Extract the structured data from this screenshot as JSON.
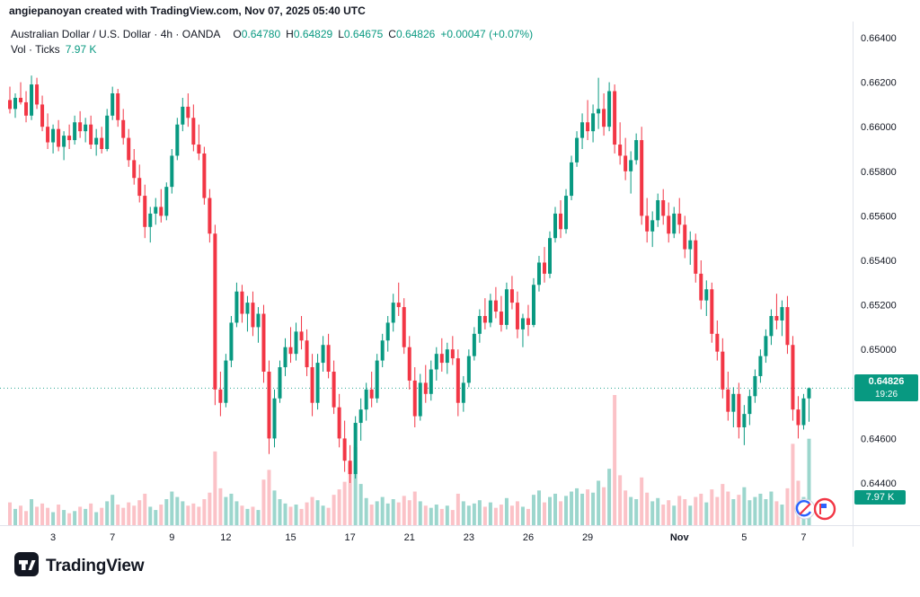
{
  "header": {
    "attribution": "angiepanoyan created with TradingView.com, Nov 07, 2025 05:40 UTC",
    "symbol_title": "Australian Dollar / U.S. Dollar · 4h · OANDA",
    "ohlc": {
      "o_label": "O",
      "o": "0.64780",
      "h_label": "H",
      "h": "0.64829",
      "l_label": "L",
      "l": "0.64675",
      "c_label": "C",
      "c": "0.64826",
      "change": "+0.00047 (+0.07%)"
    },
    "volume_label": "Vol · Ticks",
    "volume_value": "7.97 K"
  },
  "price_scale": {
    "current_price": "0.64826",
    "countdown": "19:26",
    "volume_badge": "7.97 K"
  },
  "footer": {
    "brand": "TradingView"
  },
  "colors": {
    "up": "#089981",
    "down": "#f23645",
    "up_vol": "rgba(8,153,129,0.40)",
    "down_vol": "rgba(242,54,69,0.30)",
    "axis_text": "#131722",
    "grid_line": "#e0e3eb",
    "badge_bg": "#089981"
  },
  "chart_data": {
    "type": "candlestick+volume",
    "symbol": "AUD/USD",
    "timeframe": "4h",
    "source": "OANDA",
    "title": "Australian Dollar / U.S. Dollar · 4h · OANDA",
    "ylim": [
      0.6425,
      0.6648
    ],
    "legend_position": "top-left",
    "grid": false,
    "price_ticks": [
      {
        "label": "0.66400",
        "price": 0.664
      },
      {
        "label": "0.66200",
        "price": 0.662
      },
      {
        "label": "0.66000",
        "price": 0.66
      },
      {
        "label": "0.65800",
        "price": 0.658
      },
      {
        "label": "0.65600",
        "price": 0.656
      },
      {
        "label": "0.65400",
        "price": 0.654
      },
      {
        "label": "0.65200",
        "price": 0.652
      },
      {
        "label": "0.65000",
        "price": 0.65
      },
      {
        "label": "0.64600",
        "price": 0.646
      },
      {
        "label": "0.64400",
        "price": 0.644
      }
    ],
    "x_ticks": [
      {
        "i": 8,
        "label": "3"
      },
      {
        "i": 19,
        "label": "7"
      },
      {
        "i": 30,
        "label": "9"
      },
      {
        "i": 40,
        "label": "12"
      },
      {
        "i": 52,
        "label": "15"
      },
      {
        "i": 63,
        "label": "17"
      },
      {
        "i": 74,
        "label": "21"
      },
      {
        "i": 85,
        "label": "23"
      },
      {
        "i": 96,
        "label": "26"
      },
      {
        "i": 107,
        "label": "29"
      },
      {
        "i": 124,
        "label": "Nov"
      },
      {
        "i": 136,
        "label": "5"
      },
      {
        "i": 147,
        "label": "7"
      }
    ],
    "last": {
      "close": 0.64826,
      "countdown": "19:26",
      "open": 0.6478,
      "high": 0.64829,
      "low": 0.64675
    },
    "candles": [
      [
        0.6612,
        0.6618,
        0.6606,
        0.6608
      ],
      [
        0.6608,
        0.6615,
        0.6604,
        0.6613
      ],
      [
        0.6613,
        0.662,
        0.661,
        0.6611
      ],
      [
        0.6611,
        0.6616,
        0.6602,
        0.6605
      ],
      [
        0.6605,
        0.6623,
        0.6603,
        0.6619
      ],
      [
        0.6619,
        0.6622,
        0.6608,
        0.661
      ],
      [
        0.661,
        0.6614,
        0.6598,
        0.66
      ],
      [
        0.66,
        0.6606,
        0.659,
        0.6593
      ],
      [
        0.6593,
        0.6601,
        0.6588,
        0.6599
      ],
      [
        0.6599,
        0.6603,
        0.6589,
        0.6591
      ],
      [
        0.6591,
        0.6598,
        0.6585,
        0.6596
      ],
      [
        0.6596,
        0.6601,
        0.659,
        0.6594
      ],
      [
        0.6594,
        0.6605,
        0.6592,
        0.6602
      ],
      [
        0.6602,
        0.6607,
        0.6595,
        0.6598
      ],
      [
        0.6598,
        0.6604,
        0.6593,
        0.6601
      ],
      [
        0.6601,
        0.6605,
        0.659,
        0.6592
      ],
      [
        0.6592,
        0.6599,
        0.6587,
        0.6595
      ],
      [
        0.6595,
        0.66,
        0.6588,
        0.659
      ],
      [
        0.659,
        0.6608,
        0.6589,
        0.6605
      ],
      [
        0.6605,
        0.6618,
        0.6603,
        0.6615
      ],
      [
        0.6615,
        0.6617,
        0.66,
        0.6603
      ],
      [
        0.6603,
        0.6608,
        0.6592,
        0.6595
      ],
      [
        0.6595,
        0.6599,
        0.6582,
        0.6585
      ],
      [
        0.6585,
        0.659,
        0.6574,
        0.6577
      ],
      [
        0.6577,
        0.6583,
        0.6566,
        0.6569
      ],
      [
        0.6569,
        0.6574,
        0.655,
        0.6555
      ],
      [
        0.6555,
        0.6564,
        0.6548,
        0.6561
      ],
      [
        0.6561,
        0.6568,
        0.6556,
        0.6564
      ],
      [
        0.6564,
        0.6572,
        0.6557,
        0.656
      ],
      [
        0.656,
        0.6575,
        0.6558,
        0.6573
      ],
      [
        0.6573,
        0.659,
        0.657,
        0.6587
      ],
      [
        0.6587,
        0.6604,
        0.6585,
        0.6601
      ],
      [
        0.6601,
        0.6613,
        0.6598,
        0.6609
      ],
      [
        0.6609,
        0.6615,
        0.66,
        0.6604
      ],
      [
        0.6604,
        0.661,
        0.6589,
        0.6592
      ],
      [
        0.6592,
        0.6601,
        0.6585,
        0.6588
      ],
      [
        0.6588,
        0.6591,
        0.6565,
        0.6568
      ],
      [
        0.6568,
        0.6572,
        0.6548,
        0.6552
      ],
      [
        0.6552,
        0.6556,
        0.6475,
        0.6482
      ],
      [
        0.6482,
        0.649,
        0.647,
        0.6476
      ],
      [
        0.6476,
        0.6498,
        0.6474,
        0.6495
      ],
      [
        0.6495,
        0.6515,
        0.6492,
        0.6512
      ],
      [
        0.6512,
        0.653,
        0.651,
        0.6526
      ],
      [
        0.6526,
        0.6529,
        0.6512,
        0.6516
      ],
      [
        0.6516,
        0.6524,
        0.6508,
        0.6521
      ],
      [
        0.6521,
        0.6526,
        0.6506,
        0.651
      ],
      [
        0.651,
        0.6519,
        0.6503,
        0.6516
      ],
      [
        0.6516,
        0.652,
        0.6485,
        0.649
      ],
      [
        0.649,
        0.6495,
        0.6453,
        0.646
      ],
      [
        0.646,
        0.6482,
        0.6456,
        0.6478
      ],
      [
        0.6478,
        0.6495,
        0.6476,
        0.6492
      ],
      [
        0.6492,
        0.6505,
        0.6488,
        0.6501
      ],
      [
        0.6501,
        0.651,
        0.6494,
        0.6498
      ],
      [
        0.6498,
        0.6512,
        0.6495,
        0.6508
      ],
      [
        0.6508,
        0.6515,
        0.65,
        0.6504
      ],
      [
        0.6504,
        0.6509,
        0.6488,
        0.6492
      ],
      [
        0.6492,
        0.6498,
        0.647,
        0.6476
      ],
      [
        0.6476,
        0.6498,
        0.6473,
        0.6494
      ],
      [
        0.6494,
        0.6506,
        0.649,
        0.6502
      ],
      [
        0.6502,
        0.6507,
        0.6487,
        0.649
      ],
      [
        0.649,
        0.6495,
        0.6471,
        0.6474
      ],
      [
        0.6474,
        0.648,
        0.6456,
        0.646
      ],
      [
        0.646,
        0.6468,
        0.6445,
        0.645
      ],
      [
        0.645,
        0.6457,
        0.644,
        0.6444
      ],
      [
        0.6444,
        0.647,
        0.6442,
        0.6467
      ],
      [
        0.6467,
        0.6478,
        0.6459,
        0.6473
      ],
      [
        0.6473,
        0.6485,
        0.6468,
        0.6482
      ],
      [
        0.6482,
        0.649,
        0.6474,
        0.6478
      ],
      [
        0.6478,
        0.6498,
        0.6476,
        0.6495
      ],
      [
        0.6495,
        0.6507,
        0.6492,
        0.6504
      ],
      [
        0.6504,
        0.6515,
        0.6499,
        0.6512
      ],
      [
        0.6512,
        0.6525,
        0.6508,
        0.6521
      ],
      [
        0.6521,
        0.653,
        0.6515,
        0.6519
      ],
      [
        0.6519,
        0.6523,
        0.6498,
        0.6501
      ],
      [
        0.6501,
        0.6506,
        0.6482,
        0.6486
      ],
      [
        0.6486,
        0.6492,
        0.6465,
        0.647
      ],
      [
        0.647,
        0.6489,
        0.6468,
        0.6485
      ],
      [
        0.6485,
        0.6493,
        0.6476,
        0.648
      ],
      [
        0.648,
        0.6495,
        0.6477,
        0.6491
      ],
      [
        0.6491,
        0.6501,
        0.6486,
        0.6498
      ],
      [
        0.6498,
        0.6505,
        0.649,
        0.6494
      ],
      [
        0.6494,
        0.6503,
        0.6489,
        0.65
      ],
      [
        0.65,
        0.6506,
        0.6493,
        0.6496
      ],
      [
        0.6496,
        0.65,
        0.647,
        0.6476
      ],
      [
        0.6476,
        0.6488,
        0.6472,
        0.6485
      ],
      [
        0.6485,
        0.65,
        0.6483,
        0.6497
      ],
      [
        0.6497,
        0.651,
        0.6495,
        0.6507
      ],
      [
        0.6507,
        0.6518,
        0.6503,
        0.6515
      ],
      [
        0.6515,
        0.6523,
        0.6509,
        0.6512
      ],
      [
        0.6512,
        0.6525,
        0.651,
        0.6522
      ],
      [
        0.6522,
        0.6528,
        0.6514,
        0.6517
      ],
      [
        0.6517,
        0.6524,
        0.6508,
        0.6511
      ],
      [
        0.6511,
        0.653,
        0.6509,
        0.6527
      ],
      [
        0.6527,
        0.6533,
        0.6518,
        0.6521
      ],
      [
        0.6521,
        0.6526,
        0.6505,
        0.6509
      ],
      [
        0.6509,
        0.6516,
        0.6501,
        0.6514
      ],
      [
        0.6514,
        0.652,
        0.6506,
        0.6511
      ],
      [
        0.6511,
        0.6532,
        0.651,
        0.6529
      ],
      [
        0.6529,
        0.6542,
        0.6526,
        0.6539
      ],
      [
        0.6539,
        0.6546,
        0.653,
        0.6534
      ],
      [
        0.6534,
        0.6553,
        0.6532,
        0.655
      ],
      [
        0.655,
        0.6564,
        0.6548,
        0.6561
      ],
      [
        0.6561,
        0.6567,
        0.655,
        0.6554
      ],
      [
        0.6554,
        0.6572,
        0.6552,
        0.6569
      ],
      [
        0.6569,
        0.6587,
        0.6567,
        0.6584
      ],
      [
        0.6584,
        0.6598,
        0.6582,
        0.6595
      ],
      [
        0.6595,
        0.6606,
        0.659,
        0.6602
      ],
      [
        0.6602,
        0.6612,
        0.6594,
        0.6598
      ],
      [
        0.6598,
        0.661,
        0.6593,
        0.6606
      ],
      [
        0.6606,
        0.6622,
        0.6599,
        0.6608
      ],
      [
        0.6608,
        0.6615,
        0.6596,
        0.66
      ],
      [
        0.66,
        0.662,
        0.6598,
        0.6616
      ],
      [
        0.6616,
        0.6619,
        0.6588,
        0.6592
      ],
      [
        0.6592,
        0.6602,
        0.6583,
        0.6587
      ],
      [
        0.6587,
        0.6595,
        0.6576,
        0.658
      ],
      [
        0.658,
        0.6589,
        0.657,
        0.6585
      ],
      [
        0.6585,
        0.6597,
        0.6583,
        0.6594
      ],
      [
        0.6594,
        0.66,
        0.6556,
        0.656
      ],
      [
        0.656,
        0.6568,
        0.6548,
        0.6553
      ],
      [
        0.6553,
        0.6562,
        0.6546,
        0.6558
      ],
      [
        0.6558,
        0.657,
        0.6555,
        0.6567
      ],
      [
        0.6567,
        0.6572,
        0.6556,
        0.656
      ],
      [
        0.656,
        0.6566,
        0.6548,
        0.6552
      ],
      [
        0.6552,
        0.6564,
        0.655,
        0.6561
      ],
      [
        0.6561,
        0.6568,
        0.6552,
        0.6556
      ],
      [
        0.6556,
        0.656,
        0.6541,
        0.6545
      ],
      [
        0.6545,
        0.6553,
        0.6538,
        0.6549
      ],
      [
        0.6549,
        0.6552,
        0.653,
        0.6534
      ],
      [
        0.6534,
        0.654,
        0.6518,
        0.6522
      ],
      [
        0.6522,
        0.6531,
        0.6515,
        0.6527
      ],
      [
        0.6527,
        0.653,
        0.6503,
        0.6507
      ],
      [
        0.6507,
        0.6513,
        0.6495,
        0.6499
      ],
      [
        0.6499,
        0.6505,
        0.6478,
        0.6482
      ],
      [
        0.6482,
        0.649,
        0.6468,
        0.6472
      ],
      [
        0.6472,
        0.6483,
        0.6465,
        0.648
      ],
      [
        0.648,
        0.6485,
        0.646,
        0.6465
      ],
      [
        0.6465,
        0.6475,
        0.6457,
        0.6471
      ],
      [
        0.6471,
        0.6482,
        0.6466,
        0.6479
      ],
      [
        0.6479,
        0.6491,
        0.6476,
        0.6488
      ],
      [
        0.6488,
        0.65,
        0.6485,
        0.6497
      ],
      [
        0.6497,
        0.6509,
        0.6494,
        0.6506
      ],
      [
        0.6506,
        0.6518,
        0.6502,
        0.6515
      ],
      [
        0.6515,
        0.6525,
        0.6509,
        0.6513
      ],
      [
        0.6513,
        0.6522,
        0.6506,
        0.6519
      ],
      [
        0.6519,
        0.6524,
        0.6498,
        0.6502
      ],
      [
        0.6502,
        0.6506,
        0.6468,
        0.6473
      ],
      [
        0.6473,
        0.6479,
        0.646,
        0.6466
      ],
      [
        0.6466,
        0.648,
        0.6464,
        0.6478
      ],
      [
        0.6478,
        0.64829,
        0.64675,
        0.64826
      ]
    ],
    "volumes": [
      2.1,
      1.5,
      1.8,
      1.3,
      2.4,
      1.7,
      2.0,
      1.6,
      1.2,
      1.9,
      1.4,
      1.1,
      1.3,
      1.7,
      1.5,
      2.0,
      1.2,
      1.6,
      2.2,
      2.8,
      1.9,
      1.6,
      2.1,
      1.8,
      2.3,
      2.9,
      1.7,
      1.4,
      1.9,
      2.4,
      3.1,
      2.6,
      2.2,
      1.8,
      2.0,
      1.7,
      2.4,
      3.0,
      6.8,
      3.4,
      2.6,
      2.9,
      2.2,
      1.8,
      1.5,
      1.7,
      1.4,
      4.2,
      5.1,
      3.2,
      2.4,
      2.0,
      1.7,
      1.9,
      1.5,
      2.1,
      2.6,
      2.3,
      1.8,
      1.6,
      2.8,
      3.3,
      4.0,
      5.6,
      7.2,
      3.8,
      2.5,
      1.9,
      2.2,
      2.6,
      2.0,
      2.4,
      2.1,
      2.7,
      2.3,
      3.1,
      2.2,
      1.8,
      1.6,
      1.9,
      1.5,
      1.8,
      1.4,
      2.9,
      2.2,
      1.8,
      2.0,
      2.3,
      1.7,
      2.1,
      1.6,
      1.9,
      2.5,
      1.8,
      2.2,
      1.7,
      1.5,
      2.8,
      3.2,
      2.1,
      2.6,
      2.9,
      2.2,
      2.7,
      3.1,
      3.4,
      2.9,
      3.3,
      3.0,
      4.1,
      3.5,
      5.2,
      12.0,
      4.6,
      3.2,
      2.6,
      2.4,
      4.4,
      3.0,
      2.2,
      2.5,
      1.9,
      2.3,
      1.8,
      2.7,
      2.4,
      1.8,
      2.6,
      2.9,
      2.1,
      3.3,
      2.6,
      3.8,
      3.1,
      2.4,
      2.8,
      3.5,
      2.3,
      2.6,
      2.9,
      2.4,
      3.1,
      2.2,
      1.9,
      3.4,
      7.5,
      4.1,
      2.6,
      7.97
    ]
  }
}
